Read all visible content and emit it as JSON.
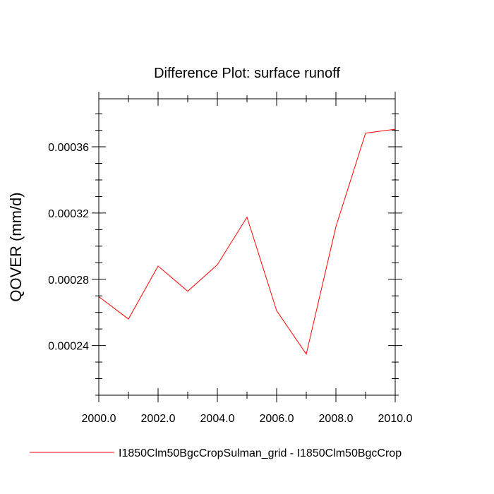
{
  "chart_data": {
    "type": "line",
    "title": "Difference Plot: surface runoff",
    "xlabel": "",
    "ylabel": "QOVER  (mm/d)",
    "xlim": [
      2000,
      2010
    ],
    "ylim": [
      0.00021,
      0.000389
    ],
    "x_ticks": [
      2000,
      2002,
      2004,
      2006,
      2008,
      2010
    ],
    "x_tick_labels": [
      "2000.0",
      "2002.0",
      "2004.0",
      "2006.0",
      "2008.0",
      "2010.0"
    ],
    "y_ticks": [
      0.00024,
      0.00028,
      0.00032,
      0.00036
    ],
    "y_tick_labels": [
      "0.00024",
      "0.00028",
      "0.00032",
      "0.00036"
    ],
    "grid": false,
    "legend_position": "bottom",
    "series": [
      {
        "name": "I1850Clm50BgcCropSulman_grid - I1850Clm50BgcCrop",
        "color": "#ff0000",
        "x": [
          2000,
          2001,
          2002,
          2003,
          2004,
          2005,
          2006,
          2007,
          2008,
          2009,
          2010
        ],
        "y": [
          0.0002695,
          0.000256,
          0.000288,
          0.0002728,
          0.0002888,
          0.0003175,
          0.000261,
          0.0002348,
          0.0003118,
          0.0003683,
          0.0003706
        ]
      }
    ]
  }
}
